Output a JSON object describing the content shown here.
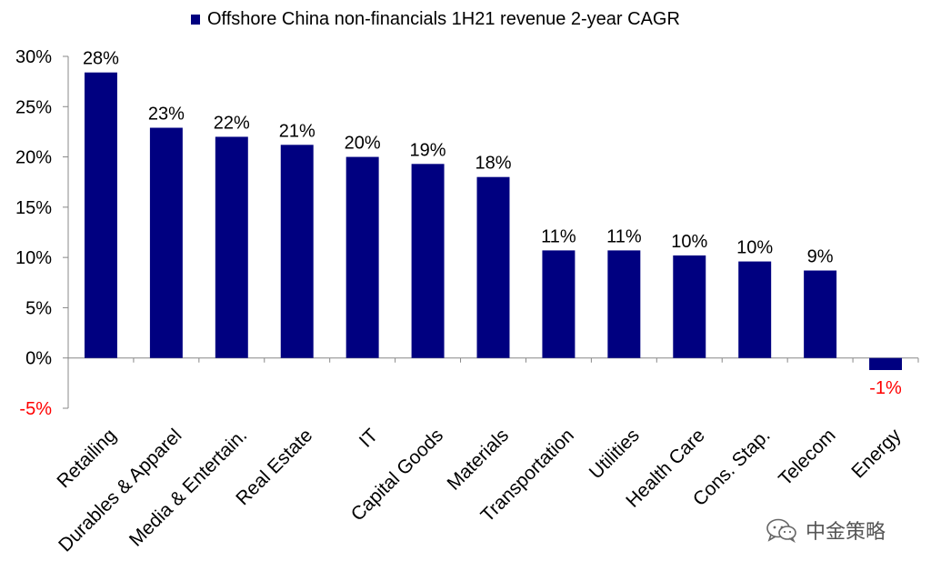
{
  "chart_data": {
    "type": "bar",
    "categories": [
      "Retailing",
      "Durables & Apparel",
      "Media & Entertain.",
      "Real Estate",
      "IT",
      "Capital Goods",
      "Materials",
      "Transportation",
      "Utilities",
      "Health Care",
      "Cons. Stap.",
      "Telecom",
      "Energy"
    ],
    "series": [
      {
        "name": "Offshore China non-financials 1H21 revenue 2-year CAGR",
        "values": [
          28.4,
          22.9,
          22.0,
          21.2,
          20.0,
          19.3,
          18.0,
          10.7,
          10.7,
          10.2,
          9.6,
          8.7,
          -1.2
        ],
        "labels": [
          "28%",
          "23%",
          "22%",
          "21%",
          "20%",
          "19%",
          "18%",
          "11%",
          "11%",
          "10%",
          "10%",
          "9%",
          "-1%"
        ]
      }
    ],
    "y_ticks": [
      "30%",
      "25%",
      "20%",
      "15%",
      "10%",
      "5%",
      "0%",
      "-5%"
    ],
    "ylim": [
      -5,
      30
    ],
    "grid": false,
    "legend_position": "top",
    "colors": {
      "bar": "#000080",
      "negative_label": "#ff0000",
      "positive_label": "#000000",
      "axis": "#888888",
      "negative_tick": "#ff0000"
    }
  },
  "watermark": {
    "icon": "wechat-icon",
    "text": "中金策略"
  }
}
